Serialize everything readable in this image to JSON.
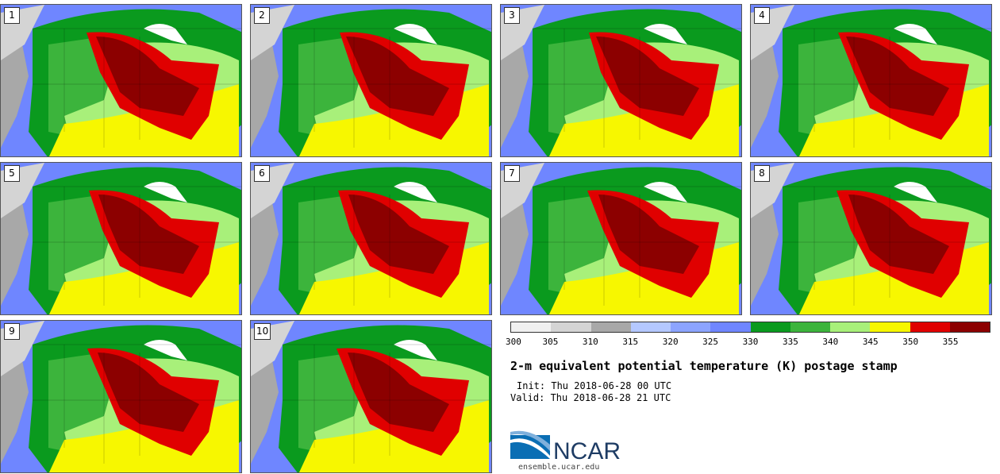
{
  "stamps": [
    {
      "label": "1"
    },
    {
      "label": "2"
    },
    {
      "label": "3"
    },
    {
      "label": "4"
    },
    {
      "label": "5"
    },
    {
      "label": "6"
    },
    {
      "label": "7"
    },
    {
      "label": "8"
    },
    {
      "label": "9"
    },
    {
      "label": "10"
    }
  ],
  "colorbar": {
    "colors": [
      "#f0f0f0",
      "#d4d4d4",
      "#a8a8a8",
      "#b4c8ff",
      "#8ca4ff",
      "#6f86ff",
      "#0a9a1e",
      "#3cb43c",
      "#a8f07a",
      "#f7f700",
      "#e00000",
      "#8c0000"
    ],
    "tick_labels": [
      "300",
      "305",
      "310",
      "315",
      "320",
      "325",
      "330",
      "335",
      "340",
      "345",
      "350",
      "355"
    ]
  },
  "title": "2-m equivalent potential temperature (K) postage stamp",
  "init": "Init: Thu 2018-06-28 00 UTC",
  "valid": "Valid: Thu 2018-06-28 21 UTC",
  "logo_text": "NCAR",
  "url": "ensemble.ucar.edu"
}
